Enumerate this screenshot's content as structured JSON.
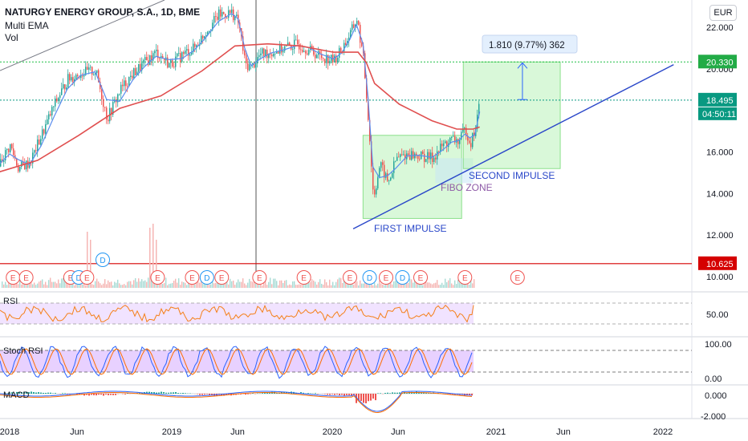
{
  "header": {
    "title": "NATURGY ENERGY GROUP, S.A., 1D, BME",
    "indicator1": "Multi EMA",
    "indicator2": "Vol",
    "currency_button": "EUR"
  },
  "colors": {
    "price_up": "#26a69a",
    "price_down": "#ef5350",
    "ema_fast": "#5b8dee",
    "ema_slow": "#e04f4f",
    "trendline": "#2a47c9",
    "impulse_box": "#7ee37e",
    "rsi_line": "#f57f17",
    "rsi_band": "#e6ccff",
    "stoch_k": "#2962ff",
    "stoch_d": "#ff6d00",
    "stoch_band": "#d9b3ff",
    "macd_line": "#2962ff",
    "signal_line": "#ff6d00",
    "hline_green": "#1fbf45",
    "hline_teal": "#089981",
    "hline_red": "#d50000"
  },
  "chart_data": {
    "type": "line",
    "title": "NATURGY ENERGY GROUP, S.A., 1D, BME",
    "x_ticks": [
      "2018",
      "Jun",
      "2019",
      "Jun",
      "2020",
      "Jun",
      "2021",
      "Jun",
      "2022"
    ],
    "y_ticks": [
      "22.000",
      "20.000",
      "18.000",
      "16.000",
      "14.000",
      "12.000",
      "10.000"
    ],
    "ylim": [
      9.7,
      23.2
    ],
    "close_series": {
      "x": [
        2017.95,
        2018.03,
        2018.08,
        2018.15,
        2018.22,
        2018.3,
        2018.38,
        2018.46,
        2018.55,
        2018.62,
        2018.7,
        2018.78,
        2018.85,
        2018.92,
        2019.0,
        2019.08,
        2019.15,
        2019.22,
        2019.3,
        2019.38,
        2019.42,
        2019.46,
        2019.5,
        2019.55,
        2019.62,
        2019.7,
        2019.78,
        2019.85,
        2019.92,
        2020.0,
        2020.05,
        2020.1,
        2020.14,
        2020.18,
        2020.21,
        2020.24,
        2020.28,
        2020.33,
        2020.38,
        2020.45,
        2020.52,
        2020.6,
        2020.66,
        2020.72,
        2020.76,
        2020.8,
        2020.83,
        2020.86,
        2020.89
      ],
      "y": [
        15.3,
        16.3,
        15.2,
        15.5,
        16.8,
        18.3,
        19.5,
        19.8,
        19.9,
        17.6,
        19.0,
        19.8,
        20.3,
        20.8,
        20.2,
        20.7,
        21.0,
        21.8,
        22.6,
        22.7,
        22.2,
        20.2,
        20.1,
        20.7,
        20.8,
        21.0,
        21.2,
        20.9,
        20.6,
        20.4,
        21.0,
        21.7,
        22.4,
        20.4,
        17.5,
        13.8,
        15.4,
        14.5,
        15.7,
        15.9,
        15.8,
        15.7,
        16.3,
        16.6,
        16.5,
        17.1,
        16.4,
        17.1,
        18.5
      ]
    },
    "ema_slow_series": {
      "x": [
        2017.95,
        2018.2,
        2018.45,
        2018.7,
        2018.95,
        2019.2,
        2019.4,
        2019.6,
        2019.8,
        2020.0,
        2020.15,
        2020.2,
        2020.25,
        2020.4,
        2020.6,
        2020.75,
        2020.85,
        2020.89
      ],
      "y": [
        15.0,
        15.6,
        16.8,
        18.1,
        18.7,
        19.9,
        21.1,
        21.2,
        21.1,
        20.8,
        20.8,
        20.3,
        19.3,
        18.3,
        17.5,
        17.1,
        17.1,
        17.2
      ]
    },
    "horizontal_levels": [
      {
        "value": 20.33,
        "label": "20.330"
      },
      {
        "value": 18.495,
        "label": "18.495"
      },
      {
        "value": 10.625,
        "label": "10.625"
      }
    ],
    "countdown_label": "04:50:11",
    "trendline": {
      "from": [
        2020.12,
        12.3
      ],
      "to": [
        2022.07,
        20.2
      ]
    },
    "zones": [
      {
        "name": "FIRST IMPULSE",
        "x": [
          2020.18,
          2020.78
        ],
        "y": [
          12.8,
          16.8
        ],
        "label": "FIRST IMPULSE"
      },
      {
        "name": "FIBO ZONE",
        "x": [
          2020.62,
          2020.85
        ],
        "y": [
          14.5,
          15.7
        ],
        "label": "FIBO ZONE"
      },
      {
        "name": "SECOND IMPULSE",
        "x": [
          2020.79,
          2021.38
        ],
        "y": [
          15.2,
          20.33
        ],
        "label": "SECOND IMPULSE"
      }
    ],
    "measure": {
      "text": "1.810 (9.77%) 362",
      "x": 2021.15,
      "y_from": 18.52,
      "y_to": 20.33
    },
    "events": [
      {
        "x": 2018.05,
        "label": "E"
      },
      {
        "x": 2018.13,
        "label": "E"
      },
      {
        "x": 2018.4,
        "label": "E"
      },
      {
        "x": 2018.45,
        "label": "D"
      },
      {
        "x": 2018.5,
        "label": "E"
      },
      {
        "x": 2018.93,
        "label": "E"
      },
      {
        "x": 2019.14,
        "label": "E"
      },
      {
        "x": 2019.23,
        "label": "D"
      },
      {
        "x": 2019.32,
        "label": "E"
      },
      {
        "x": 2019.55,
        "label": "E"
      },
      {
        "x": 2019.82,
        "label": "E"
      },
      {
        "x": 2020.1,
        "label": "E"
      },
      {
        "x": 2020.22,
        "label": "D"
      },
      {
        "x": 2020.32,
        "label": "E"
      },
      {
        "x": 2020.42,
        "label": "D"
      },
      {
        "x": 2020.53,
        "label": "E"
      },
      {
        "x": 2020.8,
        "label": "E"
      },
      {
        "x": 2021.12,
        "label": "E"
      }
    ],
    "dividend_above": {
      "x": 2018.61,
      "label": "D"
    },
    "rsi": {
      "label": "RSI",
      "ticks": [
        "50.00"
      ],
      "last": 66
    },
    "stoch_rsi": {
      "label": "Stoch RSI",
      "ticks": [
        "100.00",
        "0.00"
      ]
    },
    "macd": {
      "label": "MACD",
      "ticks": [
        "0.000",
        "-2.000"
      ]
    }
  }
}
